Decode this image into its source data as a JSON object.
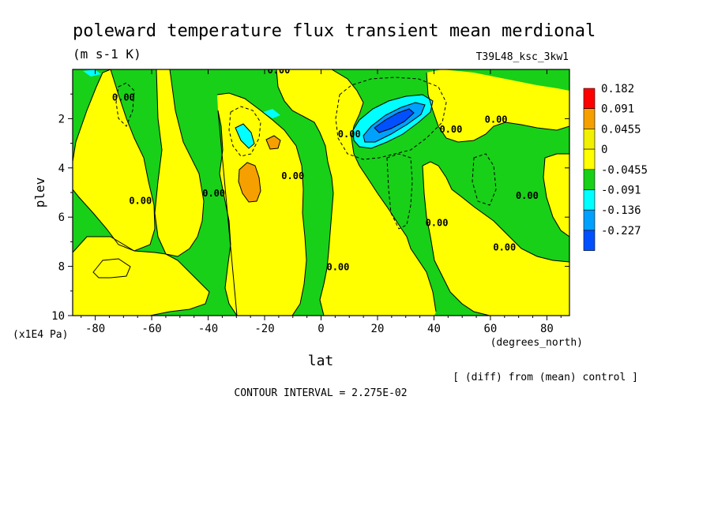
{
  "chart_data": {
    "type": "heatmap",
    "title": "poleward temperature flux transient mean merdional",
    "units": "(m s-1 K)",
    "run_label": "T39L48_ksc_3kw1",
    "xlabel": "lat",
    "x_units": "(degrees_north)",
    "ylabel": "plev",
    "y_units": "(x1E4 Pa)",
    "xlim": [
      -88,
      88
    ],
    "ylim": [
      10,
      0
    ],
    "x_ticks": [
      -80,
      -60,
      -40,
      -20,
      0,
      20,
      40,
      60,
      80
    ],
    "x_tick_labels": [
      "-80",
      "-60",
      "-40",
      "-20",
      "0",
      "20",
      "40",
      "60",
      "80"
    ],
    "y_ticks": [
      2,
      4,
      6,
      8,
      10
    ],
    "y_tick_labels": [
      "2",
      "4",
      "6",
      "8",
      "10"
    ],
    "legend": {
      "placement": "right",
      "levels": [
        "0.182",
        "0.091",
        "0.0455",
        "0",
        "-0.0455",
        "-0.091",
        "-0.136",
        "-0.227"
      ],
      "colors": [
        "#ff0000",
        "#f5a000",
        "#f0f000",
        "#ffff00",
        "#18d018",
        "#00ffff",
        "#00a0ff",
        "#0050ff"
      ]
    },
    "contour_labels": [
      {
        "text": "0.00",
        "lon": -70,
        "plev": 1.1
      },
      {
        "text": "0.00",
        "lon": -64,
        "plev": 5.3
      },
      {
        "text": "0.00",
        "lon": -38,
        "plev": 5.0
      },
      {
        "text": "0.00",
        "lon": -10,
        "plev": 4.3
      },
      {
        "text": "0.00",
        "lon": 10,
        "plev": 2.6
      },
      {
        "text": "0.00",
        "lon": 6,
        "plev": 8.0
      },
      {
        "text": "0.00",
        "lon": 41,
        "plev": 6.2
      },
      {
        "text": "0.00",
        "lon": 46,
        "plev": 2.4
      },
      {
        "text": "0.00",
        "lon": 62,
        "plev": 2.0
      },
      {
        "text": "0.00",
        "lon": 65,
        "plev": 7.2
      },
      {
        "text": "0.00",
        "lon": 73,
        "plev": 5.1
      },
      {
        "text": "0.00",
        "lon": -15,
        "plev": 0.0
      }
    ],
    "footnote": "[ (diff) from (mean) control ]",
    "contour_interval": "CONTOUR INTERVAL = 2.275E-02"
  }
}
